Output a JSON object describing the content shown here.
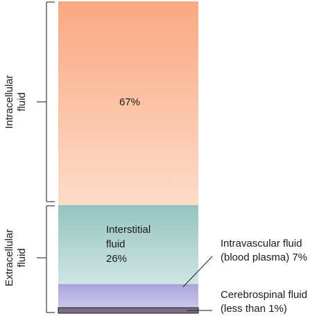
{
  "groups": {
    "intracellular": {
      "line1": "Intracellular",
      "line2": "fluid"
    },
    "extracellular": {
      "line1": "Extracellular",
      "line2": "fluid"
    }
  },
  "segments": {
    "intracellular": {
      "value": "67%",
      "color_top": "#f9a882",
      "color_bottom": "#fddcc9"
    },
    "interstitial": {
      "line1": "Interstitial",
      "line2": "fluid",
      "line3": "26%",
      "color_top": "#95c4bf",
      "color_bottom": "#cfe5e3"
    },
    "intravascular": {
      "line1": "Intravascular fluid",
      "line2": "(blood plasma) 7%",
      "color_top": "#a9a4d8",
      "color_bottom": "#cbc7ec"
    },
    "cerebrospinal": {
      "line1": "Cerebrospinal fluid",
      "line2": "(less than 1%)",
      "color": "#7a6f86"
    }
  },
  "colors": {
    "line": "#1a1a1a"
  }
}
